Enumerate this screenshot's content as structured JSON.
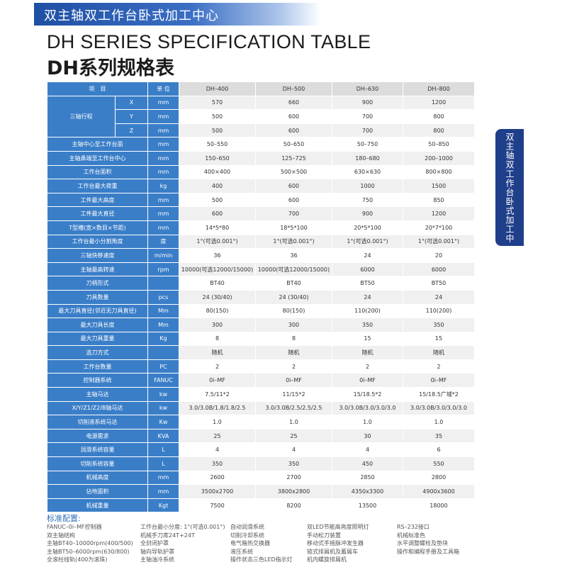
{
  "banner": "双主轴双工作台卧式加工中心",
  "title_en": "DH SERIES SPECIFICATION TABLE",
  "title_cn": "DH系列规格表",
  "side_tab": "双主轴双工作台卧式加工中心",
  "table": {
    "header": {
      "item": "项　目",
      "unit": "单 位",
      "models": [
        "DH–400",
        "DH–500",
        "DH–630",
        "DH–800"
      ]
    },
    "stroke_label": "三轴行程",
    "stroke_rows": [
      {
        "axis": "X",
        "unit": "mm",
        "values": [
          "570",
          "660",
          "900",
          "1200"
        ]
      },
      {
        "axis": "Y",
        "unit": "mm",
        "values": [
          "500",
          "600",
          "700",
          "800"
        ]
      },
      {
        "axis": "Z",
        "unit": "mm",
        "values": [
          "500",
          "600",
          "700",
          "800"
        ]
      }
    ],
    "rows": [
      {
        "label": "主轴中心至工作台面",
        "unit": "mm",
        "values": [
          "50–550",
          "50–650",
          "50–750",
          "50–850"
        ]
      },
      {
        "label": "主轴鼻端至工作台中心",
        "unit": "mm",
        "values": [
          "150–650",
          "125–725",
          "180–680",
          "200–1000"
        ]
      },
      {
        "label": "工作台面积",
        "unit": "mm",
        "values": [
          "400×400",
          "500×500",
          "630×630",
          "800×800"
        ]
      },
      {
        "label": "工作台最大荷重",
        "unit": "kg",
        "values": [
          "400",
          "600",
          "1000",
          "1500"
        ]
      },
      {
        "label": "工件最大高度",
        "unit": "mm",
        "values": [
          "500",
          "600",
          "750",
          "850"
        ]
      },
      {
        "label": "工件最大直径",
        "unit": "mm",
        "values": [
          "600",
          "700",
          "900",
          "1200"
        ]
      },
      {
        "label": "T型槽(宽×数目×节距)",
        "unit": "mm",
        "values": [
          "14*5*80",
          "18*5*100",
          "20*5*100",
          "20*7*100"
        ]
      },
      {
        "label": "工作台最小分割角度",
        "unit": "度",
        "values": [
          "1°(可选0.001°)",
          "1°(可选0.001°)",
          "1°(可选0.001°)",
          "1°(可选0.001°)"
        ]
      },
      {
        "label": "三轴快移速度",
        "unit": "m/min",
        "values": [
          "36",
          "36",
          "24",
          "20"
        ]
      },
      {
        "label": "主轴最高转速",
        "unit": "rpm",
        "values": [
          "10000(可选12000/15000)",
          "10000(可选12000/15000)",
          "6000",
          "6000"
        ]
      },
      {
        "label": "刀柄形式",
        "unit": "",
        "values": [
          "BT40",
          "BT40",
          "BT50",
          "BT50"
        ]
      },
      {
        "label": "刀具数量",
        "unit": "pcs",
        "values": [
          "24 (30/40)",
          "24 (30/40)",
          "24",
          "24"
        ]
      },
      {
        "label": "最大刀具直径(邻近无刀具直径)",
        "unit": "Mm",
        "values": [
          "80(150)",
          "80(150)",
          "110(200)",
          "110(200)"
        ]
      },
      {
        "label": "最大刀具长度",
        "unit": "Mm",
        "values": [
          "300",
          "300",
          "350",
          "350"
        ]
      },
      {
        "label": "最大刀具重量",
        "unit": "Kg",
        "values": [
          "8",
          "8",
          "15",
          "15"
        ]
      },
      {
        "label": "选刀方式",
        "unit": "",
        "values": [
          "随机",
          "随机",
          "随机",
          "随机"
        ]
      },
      {
        "label": "工作台数量",
        "unit": "PC",
        "values": [
          "2",
          "2",
          "2",
          "2"
        ]
      },
      {
        "label": "控制器系统",
        "unit": "FANUC",
        "values": [
          "0i–MF",
          "0i–MF",
          "0i–MF",
          "0i–MF"
        ]
      },
      {
        "label": "主轴马达",
        "unit": "kw",
        "values": [
          "7.5/11*2",
          "11/15*2",
          "15/18.5*2",
          "15/18.5广域*2"
        ]
      },
      {
        "label": "X/Y/Z1/Z2/B轴马达",
        "unit": "kw",
        "values": [
          "3.0/3.0B/1.8/1.8/2.5",
          "3.0/3.0B/2.5/2.5/2.5",
          "3.0/3.0B/3.0/3.0/3.0",
          "3.0/3.0B/3.0/3.0/3.0"
        ]
      },
      {
        "label": "切削液系统马达",
        "unit": "Kw",
        "values": [
          "1.0",
          "1.0",
          "1.0",
          "1.0"
        ]
      },
      {
        "label": "电源需求",
        "unit": "KVA",
        "values": [
          "25",
          "25",
          "30",
          "35"
        ]
      },
      {
        "label": "润滑系统容量",
        "unit": "L",
        "values": [
          "4",
          "4",
          "4",
          "6"
        ]
      },
      {
        "label": "切削系统容量",
        "unit": "L",
        "values": [
          "350",
          "350",
          "450",
          "550"
        ]
      },
      {
        "label": "机械高度",
        "unit": "mm",
        "values": [
          "2600",
          "2700",
          "2850",
          "2800"
        ]
      },
      {
        "label": "佔地面积",
        "unit": "mm",
        "values": [
          "3500x2700",
          "3800x2800",
          "4350x3300",
          "4900x3600"
        ]
      },
      {
        "label": "机械重量",
        "unit": "Kgt",
        "values": [
          "7500",
          "8200",
          "13500",
          "18000"
        ]
      }
    ]
  },
  "config": {
    "title": "标准配置:",
    "columns": [
      [
        "FANUC–0i–MF控制器",
        "双主轴结构",
        "主轴BT40–10000rpm(400/500)",
        "主轴BT50–6000rpm(630/800)",
        "全滚柱线轨(400为滚珠)"
      ],
      [
        "工作台最小分度: 1°(可选0.001°)",
        "机械手刀库24T+24T",
        "全封闭护罩",
        "轴向导轨护罩",
        "主轴油冷系统"
      ],
      [
        "自动润滑系统",
        "切削冷却系统",
        "电气箱热交换器",
        "液压系统",
        "操作状态三色LED指示灯"
      ],
      [
        "双LED节能高亮度照明灯",
        "手动松刀装置",
        "移动式手摇脉冲发生器",
        "链式排屑机及蓄屑车",
        "机内螺旋排屑机"
      ],
      [
        "RS–232接口",
        "机械标准色",
        "水平调整螺栓及垫块",
        "操作和编程手册及工具箱"
      ]
    ]
  }
}
